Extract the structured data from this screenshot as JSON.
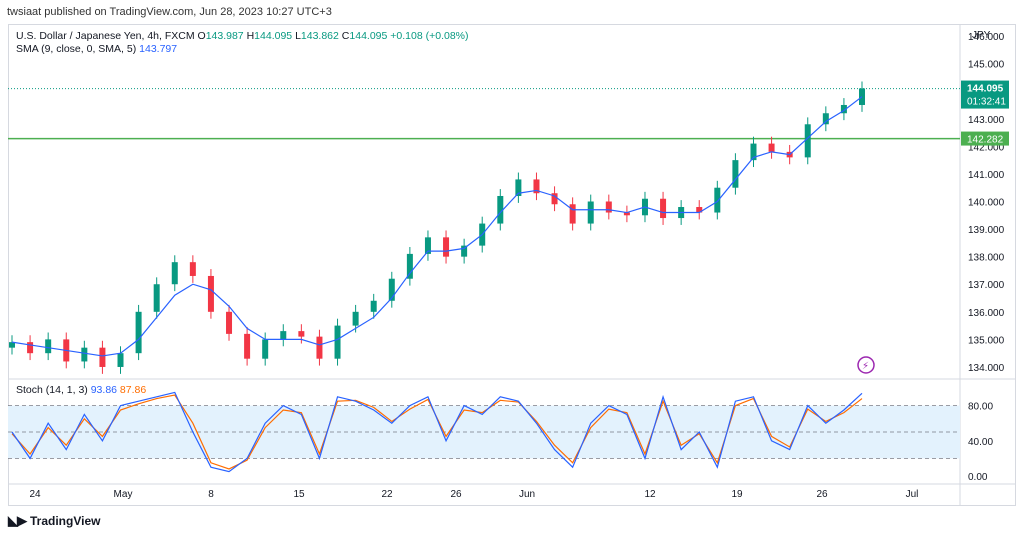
{
  "header": {
    "published": "twsiaat published on TradingView.com, Jun 28, 2023 10:27 UTC+3"
  },
  "legend": {
    "symbol": "U.S. Dollar / Japanese Yen, 4h, FXCM",
    "open_label": "O",
    "open": "143.987",
    "high_label": "H",
    "high": "144.095",
    "low_label": "L",
    "low": "143.862",
    "close_label": "C",
    "close": "144.095",
    "change": "+0.108 (+0.08%)",
    "sma_label": "SMA (9, close, 0, SMA, 5)",
    "sma_value": "143.797",
    "stoch_label": "Stoch (14, 1, 3)",
    "stoch_k": "93.86",
    "stoch_d": "87.86"
  },
  "price_axis": {
    "currency": "JPY",
    "ticks": [
      "146.000",
      "145.000",
      "144.000",
      "143.000",
      "142.000",
      "141.000",
      "140.000",
      "139.000",
      "138.000",
      "137.000",
      "136.000",
      "135.000",
      "134.000"
    ],
    "tick_values": [
      146,
      145,
      144,
      143,
      142,
      141,
      140,
      139,
      138,
      137,
      136,
      135,
      134
    ],
    "last_price": "144.095",
    "countdown": "01:32:41",
    "level_label": "142.282",
    "level_value": 142.282
  },
  "stoch_axis": {
    "ticks": [
      "80.00",
      "40.00",
      "0.00"
    ],
    "tick_values": [
      80,
      40,
      0
    ]
  },
  "time_axis": {
    "labels": [
      "24",
      "May",
      "8",
      "15",
      "22",
      "26",
      "Jun",
      "12",
      "19",
      "26",
      "Jul"
    ]
  },
  "colors": {
    "up": "#089981",
    "down": "#f23645",
    "sma": "#2962ff",
    "k": "#2962ff",
    "d": "#ff6d00",
    "level": "#4caf50",
    "band": "#e3f2fd",
    "badge": "#089981"
  },
  "footer": {
    "logo": "TradingView"
  },
  "chart_data": {
    "type": "line",
    "price_points": [
      134.9,
      134.5,
      135.0,
      134.2,
      134.7,
      134.0,
      134.5,
      136.0,
      137.0,
      137.8,
      137.3,
      136.0,
      135.2,
      134.3,
      135.0,
      135.3,
      135.1,
      134.3,
      135.5,
      136.0,
      136.4,
      137.2,
      138.1,
      138.7,
      138.0,
      138.4,
      139.2,
      140.2,
      140.8,
      140.3,
      139.9,
      139.2,
      140.0,
      139.6,
      139.5,
      140.1,
      139.4,
      139.8,
      139.6,
      140.5,
      141.5,
      142.1,
      141.8,
      141.6,
      142.8,
      143.2,
      143.5,
      144.1
    ],
    "sma_points": [
      134.9,
      134.8,
      134.7,
      134.6,
      134.5,
      134.4,
      134.5,
      135.0,
      135.8,
      136.6,
      137.0,
      136.8,
      136.2,
      135.4,
      135.0,
      135.0,
      135.0,
      134.8,
      135.0,
      135.4,
      135.8,
      136.5,
      137.4,
      138.2,
      138.2,
      138.3,
      138.8,
      139.6,
      140.3,
      140.4,
      140.2,
      139.7,
      139.7,
      139.7,
      139.6,
      139.8,
      139.6,
      139.6,
      139.6,
      140.0,
      140.8,
      141.6,
      141.8,
      141.7,
      142.3,
      142.9,
      143.3,
      143.8
    ],
    "stoch_k": [
      50,
      20,
      60,
      30,
      70,
      40,
      80,
      85,
      90,
      95,
      50,
      10,
      5,
      20,
      60,
      80,
      70,
      20,
      90,
      85,
      75,
      60,
      80,
      90,
      40,
      80,
      70,
      90,
      85,
      60,
      30,
      10,
      60,
      80,
      70,
      20,
      90,
      30,
      50,
      10,
      85,
      90,
      40,
      30,
      80,
      60,
      75,
      94
    ],
    "stoch_d": [
      48,
      25,
      55,
      35,
      65,
      45,
      75,
      82,
      88,
      92,
      60,
      15,
      8,
      18,
      55,
      75,
      72,
      25,
      85,
      86,
      78,
      62,
      76,
      87,
      45,
      75,
      72,
      86,
      84,
      62,
      35,
      15,
      55,
      76,
      72,
      25,
      85,
      35,
      48,
      15,
      80,
      88,
      45,
      33,
      76,
      62,
      72,
      88
    ],
    "ylim_price": [
      133.6,
      146.4
    ],
    "ylim_stoch": [
      0,
      100
    ]
  }
}
